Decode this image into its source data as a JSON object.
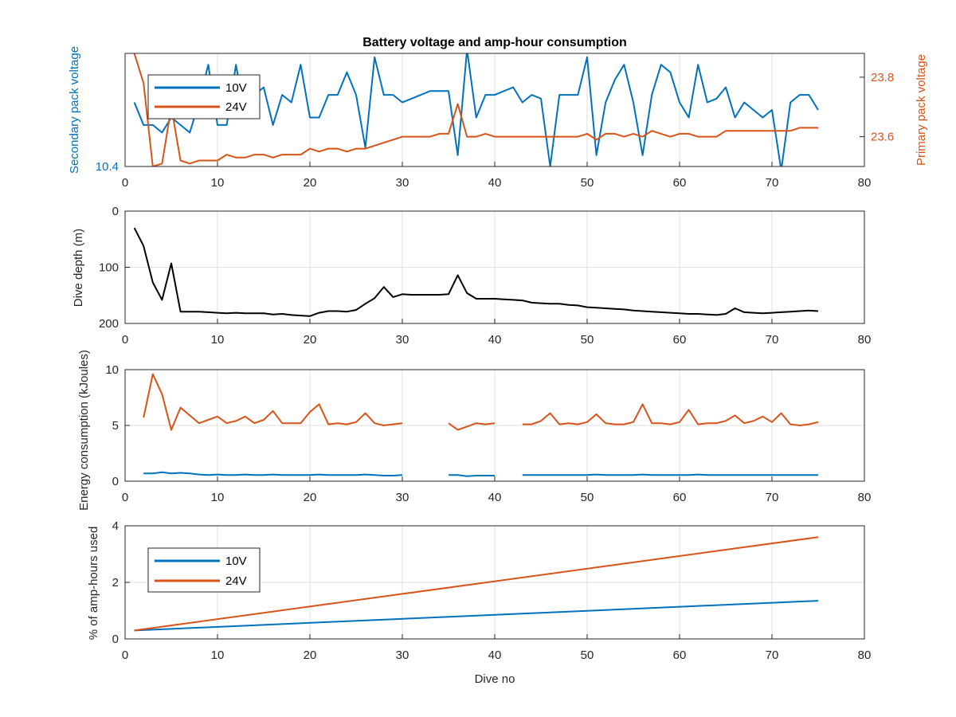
{
  "colors": {
    "v10": "#0072bd",
    "v24": "#d95319",
    "depth": "#000000"
  },
  "chart_data": [
    {
      "type": "line",
      "title": "Battery voltage and amp-hour consumption",
      "xlabel": "",
      "ylabel": "Secondary pack voltage",
      "ylabel_right": "Primary pack voltage",
      "xlim": [
        0,
        80
      ],
      "xticks": [
        0,
        10,
        20,
        30,
        40,
        50,
        60,
        70,
        80
      ],
      "ylim": [
        10.4,
        10.7
      ],
      "yticks": [
        10.4
      ],
      "ylim_right": [
        23.5,
        23.88
      ],
      "yticks_right": [
        23.6,
        23.8
      ],
      "grid": true,
      "legend": {
        "location": "top-left",
        "entries": [
          "10V",
          "24V"
        ]
      },
      "series": [
        {
          "name": "10V",
          "axis": "left",
          "color": "#0072bd",
          "x": [
            1,
            2,
            3,
            4,
            5,
            6,
            7,
            8,
            9,
            10,
            11,
            12,
            13,
            14,
            15,
            16,
            17,
            18,
            19,
            20,
            21,
            22,
            23,
            24,
            25,
            26,
            27,
            28,
            29,
            30,
            31,
            32,
            33,
            34,
            35,
            36,
            37,
            38,
            39,
            40,
            41,
            42,
            43,
            44,
            45,
            46,
            47,
            48,
            49,
            50,
            51,
            52,
            53,
            54,
            55,
            56,
            57,
            58,
            59,
            60,
            61,
            62,
            63,
            64,
            65,
            66,
            67,
            68,
            69,
            70,
            71,
            72,
            73,
            74,
            75
          ],
          "values": [
            10.57,
            10.51,
            10.51,
            10.49,
            10.53,
            10.51,
            10.49,
            10.57,
            10.67,
            10.51,
            10.51,
            10.67,
            10.53,
            10.59,
            10.61,
            10.51,
            10.59,
            10.57,
            10.67,
            10.53,
            10.53,
            10.59,
            10.59,
            10.65,
            10.59,
            10.45,
            10.69,
            10.59,
            10.59,
            10.57,
            10.58,
            10.59,
            10.6,
            10.6,
            10.6,
            10.43,
            10.71,
            10.53,
            10.59,
            10.59,
            10.6,
            10.61,
            10.57,
            10.59,
            10.58,
            10.4,
            10.59,
            10.59,
            10.59,
            10.69,
            10.43,
            10.57,
            10.63,
            10.67,
            10.57,
            10.43,
            10.59,
            10.67,
            10.65,
            10.57,
            10.53,
            10.67,
            10.57,
            10.58,
            10.61,
            10.53,
            10.57,
            10.55,
            10.53,
            10.55,
            10.39,
            10.57,
            10.59,
            10.59,
            10.55
          ]
        },
        {
          "name": "24V",
          "axis": "right",
          "color": "#d95319",
          "x": [
            1,
            2,
            3,
            4,
            5,
            6,
            7,
            8,
            9,
            10,
            11,
            12,
            13,
            14,
            15,
            16,
            17,
            18,
            19,
            20,
            21,
            22,
            23,
            24,
            25,
            26,
            27,
            28,
            29,
            30,
            31,
            32,
            33,
            34,
            35,
            36,
            37,
            38,
            39,
            40,
            41,
            42,
            43,
            44,
            45,
            46,
            47,
            48,
            49,
            50,
            51,
            52,
            53,
            54,
            55,
            56,
            57,
            58,
            59,
            60,
            61,
            62,
            63,
            64,
            65,
            66,
            67,
            68,
            69,
            70,
            71,
            72,
            73,
            74,
            75
          ],
          "values": [
            23.88,
            23.78,
            23.5,
            23.51,
            23.7,
            23.52,
            23.51,
            23.52,
            23.52,
            23.52,
            23.54,
            23.53,
            23.53,
            23.54,
            23.54,
            23.53,
            23.54,
            23.54,
            23.54,
            23.56,
            23.55,
            23.56,
            23.56,
            23.55,
            23.56,
            23.56,
            23.57,
            23.58,
            23.59,
            23.6,
            23.6,
            23.6,
            23.6,
            23.61,
            23.61,
            23.71,
            23.6,
            23.6,
            23.61,
            23.6,
            23.6,
            23.6,
            23.6,
            23.6,
            23.6,
            23.6,
            23.6,
            23.6,
            23.6,
            23.61,
            23.59,
            23.61,
            23.61,
            23.6,
            23.61,
            23.6,
            23.62,
            23.61,
            23.6,
            23.61,
            23.61,
            23.6,
            23.6,
            23.6,
            23.62,
            23.62,
            23.62,
            23.62,
            23.62,
            23.62,
            23.62,
            23.62,
            23.63,
            23.63,
            23.63
          ]
        }
      ]
    },
    {
      "type": "line",
      "title": "",
      "xlabel": "",
      "ylabel": "Dive depth (m)",
      "xlim": [
        0,
        80
      ],
      "xticks": [
        0,
        10,
        20,
        30,
        40,
        50,
        60,
        70,
        80
      ],
      "ylim": [
        0,
        200
      ],
      "ylim_reversed": true,
      "yticks": [
        0,
        100,
        200
      ],
      "grid": true,
      "series": [
        {
          "color": "#000000",
          "x": [
            1,
            2,
            3,
            4,
            5,
            6,
            7,
            8,
            9,
            10,
            11,
            12,
            13,
            14,
            15,
            16,
            17,
            18,
            19,
            20,
            21,
            22,
            23,
            24,
            25,
            26,
            27,
            28,
            29,
            30,
            31,
            32,
            33,
            34,
            35,
            36,
            37,
            38,
            39,
            40,
            41,
            42,
            43,
            44,
            45,
            46,
            47,
            48,
            49,
            50,
            51,
            52,
            53,
            54,
            55,
            56,
            57,
            58,
            59,
            60,
            61,
            62,
            63,
            64,
            65,
            66,
            67,
            68,
            69,
            70,
            71,
            72,
            73,
            74,
            75
          ],
          "values": [
            30,
            62,
            127,
            158,
            93,
            179,
            179,
            179,
            180,
            181,
            182,
            181,
            182,
            182,
            182,
            184,
            183,
            185,
            186,
            187,
            181,
            178,
            178,
            179,
            176,
            165,
            155,
            135,
            153,
            148,
            149,
            149,
            149,
            149,
            148,
            114,
            146,
            156,
            156,
            156,
            157,
            158,
            159,
            163,
            164,
            165,
            165,
            167,
            168,
            171,
            172,
            173,
            174,
            175,
            177,
            178,
            179,
            180,
            181,
            182,
            183,
            183,
            184,
            185,
            183,
            173,
            180,
            181,
            182,
            181,
            180,
            179,
            178,
            177,
            178
          ]
        }
      ]
    },
    {
      "type": "line",
      "title": "",
      "xlabel": "",
      "ylabel": "Energy consumption (kJoules)",
      "xlim": [
        0,
        80
      ],
      "xticks": [
        0,
        10,
        20,
        30,
        40,
        50,
        60,
        70,
        80
      ],
      "ylim": [
        0,
        10
      ],
      "yticks": [
        0,
        5,
        10
      ],
      "grid": true,
      "series": [
        {
          "name": "10V",
          "color": "#0072bd",
          "x": [
            2,
            3,
            4,
            5,
            6,
            7,
            8,
            9,
            10,
            11,
            12,
            13,
            14,
            15,
            16,
            17,
            18,
            19,
            20,
            21,
            22,
            23,
            24,
            25,
            26,
            27,
            28,
            29,
            30,
            null,
            35,
            36,
            37,
            38,
            39,
            40,
            null,
            43,
            44,
            45,
            46,
            47,
            48,
            49,
            50,
            51,
            52,
            53,
            54,
            55,
            56,
            57,
            58,
            59,
            60,
            61,
            62,
            63,
            64,
            65,
            66,
            67,
            68,
            69,
            70,
            71,
            72,
            73,
            74,
            75
          ],
          "values": [
            0.7,
            0.7,
            0.8,
            0.7,
            0.75,
            0.7,
            0.6,
            0.55,
            0.6,
            0.55,
            0.55,
            0.6,
            0.55,
            0.55,
            0.6,
            0.55,
            0.55,
            0.55,
            0.55,
            0.6,
            0.55,
            0.55,
            0.55,
            0.55,
            0.6,
            0.55,
            0.5,
            0.5,
            0.55,
            null,
            0.55,
            0.55,
            0.45,
            0.5,
            0.5,
            0.5,
            null,
            0.55,
            0.55,
            0.55,
            0.55,
            0.55,
            0.55,
            0.55,
            0.55,
            0.6,
            0.55,
            0.55,
            0.55,
            0.55,
            0.6,
            0.55,
            0.55,
            0.55,
            0.55,
            0.55,
            0.6,
            0.55,
            0.55,
            0.55,
            0.55,
            0.55,
            0.55,
            0.55,
            0.55,
            0.55,
            0.55,
            0.55,
            0.55,
            0.55
          ]
        },
        {
          "name": "24V",
          "color": "#d95319",
          "x": [
            2,
            3,
            4,
            5,
            6,
            7,
            8,
            9,
            10,
            11,
            12,
            13,
            14,
            15,
            16,
            17,
            18,
            19,
            20,
            21,
            22,
            23,
            24,
            25,
            26,
            27,
            28,
            29,
            30,
            null,
            35,
            36,
            37,
            38,
            39,
            40,
            null,
            43,
            44,
            45,
            46,
            47,
            48,
            49,
            50,
            51,
            52,
            53,
            54,
            55,
            56,
            57,
            58,
            59,
            60,
            61,
            62,
            63,
            64,
            65,
            66,
            67,
            68,
            69,
            70,
            71,
            72,
            73,
            74,
            75
          ],
          "values": [
            5.7,
            9.6,
            7.8,
            4.6,
            6.6,
            5.9,
            5.2,
            5.5,
            5.8,
            5.2,
            5.4,
            5.8,
            5.2,
            5.5,
            6.3,
            5.2,
            5.2,
            5.2,
            6.2,
            6.9,
            5.1,
            5.2,
            5.1,
            5.3,
            6.1,
            5.2,
            5.0,
            5.1,
            5.2,
            null,
            5.2,
            4.6,
            4.9,
            5.2,
            5.1,
            5.2,
            null,
            5.1,
            5.1,
            5.4,
            6.1,
            5.1,
            5.2,
            5.1,
            5.3,
            6.0,
            5.2,
            5.1,
            5.1,
            5.3,
            6.9,
            5.2,
            5.2,
            5.1,
            5.3,
            6.4,
            5.1,
            5.2,
            5.2,
            5.4,
            5.9,
            5.2,
            5.4,
            5.8,
            5.3,
            6.1,
            5.1,
            5.0,
            5.1,
            5.3
          ]
        }
      ]
    },
    {
      "type": "line",
      "title": "",
      "xlabel": "Dive no",
      "ylabel": "% of amp-hours used",
      "xlim": [
        0,
        80
      ],
      "xticks": [
        0,
        10,
        20,
        30,
        40,
        50,
        60,
        70,
        80
      ],
      "ylim": [
        0,
        4
      ],
      "yticks": [
        0,
        2,
        4
      ],
      "grid": true,
      "legend": {
        "location": "top-left",
        "entries": [
          "10V",
          "24V"
        ]
      },
      "series": [
        {
          "name": "10V",
          "color": "#0072bd",
          "x": [
            1,
            75
          ],
          "values": [
            0.3,
            1.35
          ]
        },
        {
          "name": "24V",
          "color": "#d95319",
          "x": [
            1,
            75
          ],
          "values": [
            0.3,
            3.6
          ]
        }
      ]
    }
  ]
}
